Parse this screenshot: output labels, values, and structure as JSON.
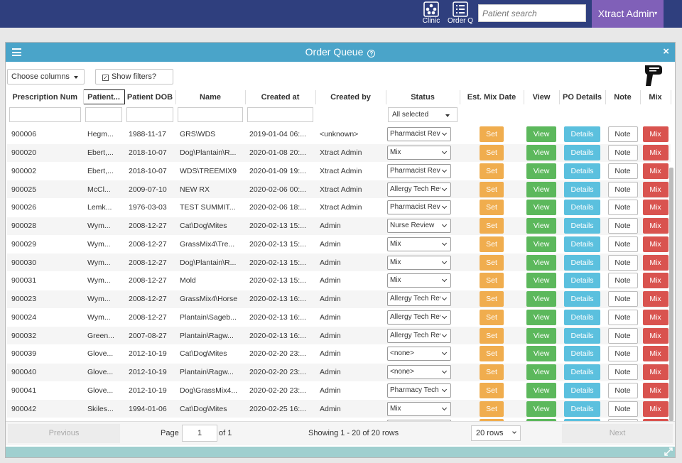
{
  "topbar": {
    "nav": [
      {
        "label": "Clinic",
        "icon": "clinic-icon"
      },
      {
        "label": "Order Q",
        "icon": "list-icon"
      }
    ],
    "search_placeholder": "Patient search",
    "user_label": "Xtract Admin"
  },
  "window": {
    "title": "Order Queue",
    "help": "?",
    "close": "×"
  },
  "toolbar": {
    "choose_columns": "Choose columns",
    "show_filters": "Show filters?"
  },
  "table": {
    "headers": [
      "Prescription Num",
      "Patient...",
      "Patient DOB",
      "Name",
      "Created at",
      "Created by",
      "Status",
      "Est. Mix Date",
      "View",
      "PO Details",
      "Note",
      "Mix"
    ],
    "status_filter": "All selected",
    "buttons": {
      "set": "Set",
      "view": "View",
      "details": "Details",
      "note": "Note",
      "mix": "Mix"
    },
    "rows": [
      {
        "num": "900006",
        "patient": "Hegm...",
        "dob": "1988-11-17",
        "name": "GRS\\WDS",
        "created": "2019-01-04 06:...",
        "by": "<unknown>",
        "status": "Pharmacist Rev"
      },
      {
        "num": "900020",
        "patient": "Ebert,...",
        "dob": "2018-10-07",
        "name": "Dog\\Plantain\\R...",
        "created": "2020-01-08 20:...",
        "by": "Xtract Admin",
        "status": "Mix"
      },
      {
        "num": "900002",
        "patient": "Ebert,...",
        "dob": "2018-10-07",
        "name": "WDS\\TREEMIX9",
        "created": "2020-01-09 19:...",
        "by": "Xtract Admin",
        "status": "Pharmacist Rev"
      },
      {
        "num": "900025",
        "patient": "McCl...",
        "dob": "2009-07-10",
        "name": "NEW RX",
        "created": "2020-02-06 00:...",
        "by": "Xtract Admin",
        "status": "Allergy Tech Rev"
      },
      {
        "num": "900026",
        "patient": "Lemk...",
        "dob": "1976-03-03",
        "name": "TEST SUMMIT...",
        "created": "2020-02-06 18:...",
        "by": "Xtract Admin",
        "status": "Pharmacist Rev"
      },
      {
        "num": "900028",
        "patient": "Wym...",
        "dob": "2008-12-27",
        "name": "Cat\\Dog\\Mites",
        "created": "2020-02-13 15:...",
        "by": "Admin",
        "status": "Nurse Review"
      },
      {
        "num": "900029",
        "patient": "Wym...",
        "dob": "2008-12-27",
        "name": "GrassMix4\\Tre...",
        "created": "2020-02-13 15:...",
        "by": "Admin",
        "status": "Mix"
      },
      {
        "num": "900030",
        "patient": "Wym...",
        "dob": "2008-12-27",
        "name": "Dog\\Plantain\\R...",
        "created": "2020-02-13 15:...",
        "by": "Admin",
        "status": "Mix"
      },
      {
        "num": "900031",
        "patient": "Wym...",
        "dob": "2008-12-27",
        "name": "Mold",
        "created": "2020-02-13 15:...",
        "by": "Admin",
        "status": "Mix"
      },
      {
        "num": "900023",
        "patient": "Wym...",
        "dob": "2008-12-27",
        "name": "GrassMix4\\Horse",
        "created": "2020-02-13 16:...",
        "by": "Admin",
        "status": "Allergy Tech Rev"
      },
      {
        "num": "900024",
        "patient": "Wym...",
        "dob": "2008-12-27",
        "name": "Plantain\\Sageb...",
        "created": "2020-02-13 16:...",
        "by": "Admin",
        "status": "Allergy Tech Rev"
      },
      {
        "num": "900032",
        "patient": "Green...",
        "dob": "2007-08-27",
        "name": "Plantain\\Ragw...",
        "created": "2020-02-13 16:...",
        "by": "Admin",
        "status": "Allergy Tech Rev"
      },
      {
        "num": "900039",
        "patient": "Glove...",
        "dob": "2012-10-19",
        "name": "Cat\\Dog\\Mites",
        "created": "2020-02-20 23:...",
        "by": "Admin",
        "status": "<none>"
      },
      {
        "num": "900040",
        "patient": "Glove...",
        "dob": "2012-10-19",
        "name": "Plantain\\Ragw...",
        "created": "2020-02-20 23:...",
        "by": "Admin",
        "status": "<none>"
      },
      {
        "num": "900041",
        "patient": "Glove...",
        "dob": "2012-10-19",
        "name": "Dog\\GrassMix4...",
        "created": "2020-02-20 23:...",
        "by": "Admin",
        "status": "Pharmacy Tech"
      },
      {
        "num": "900042",
        "patient": "Skiles...",
        "dob": "1994-01-06",
        "name": "Cat\\Dog\\Mites",
        "created": "2020-02-25 16:...",
        "by": "Admin",
        "status": "Mix"
      },
      {
        "num": "",
        "patient": "",
        "dob": "",
        "name": "",
        "created": "",
        "by": "",
        "status": ""
      }
    ]
  },
  "pager": {
    "previous": "Previous",
    "page_label": "Page",
    "page_value": "1",
    "of_label": "of 1",
    "showing": "Showing 1 - 20 of 20 rows",
    "rows_per_page": "20 rows",
    "next": "Next"
  }
}
